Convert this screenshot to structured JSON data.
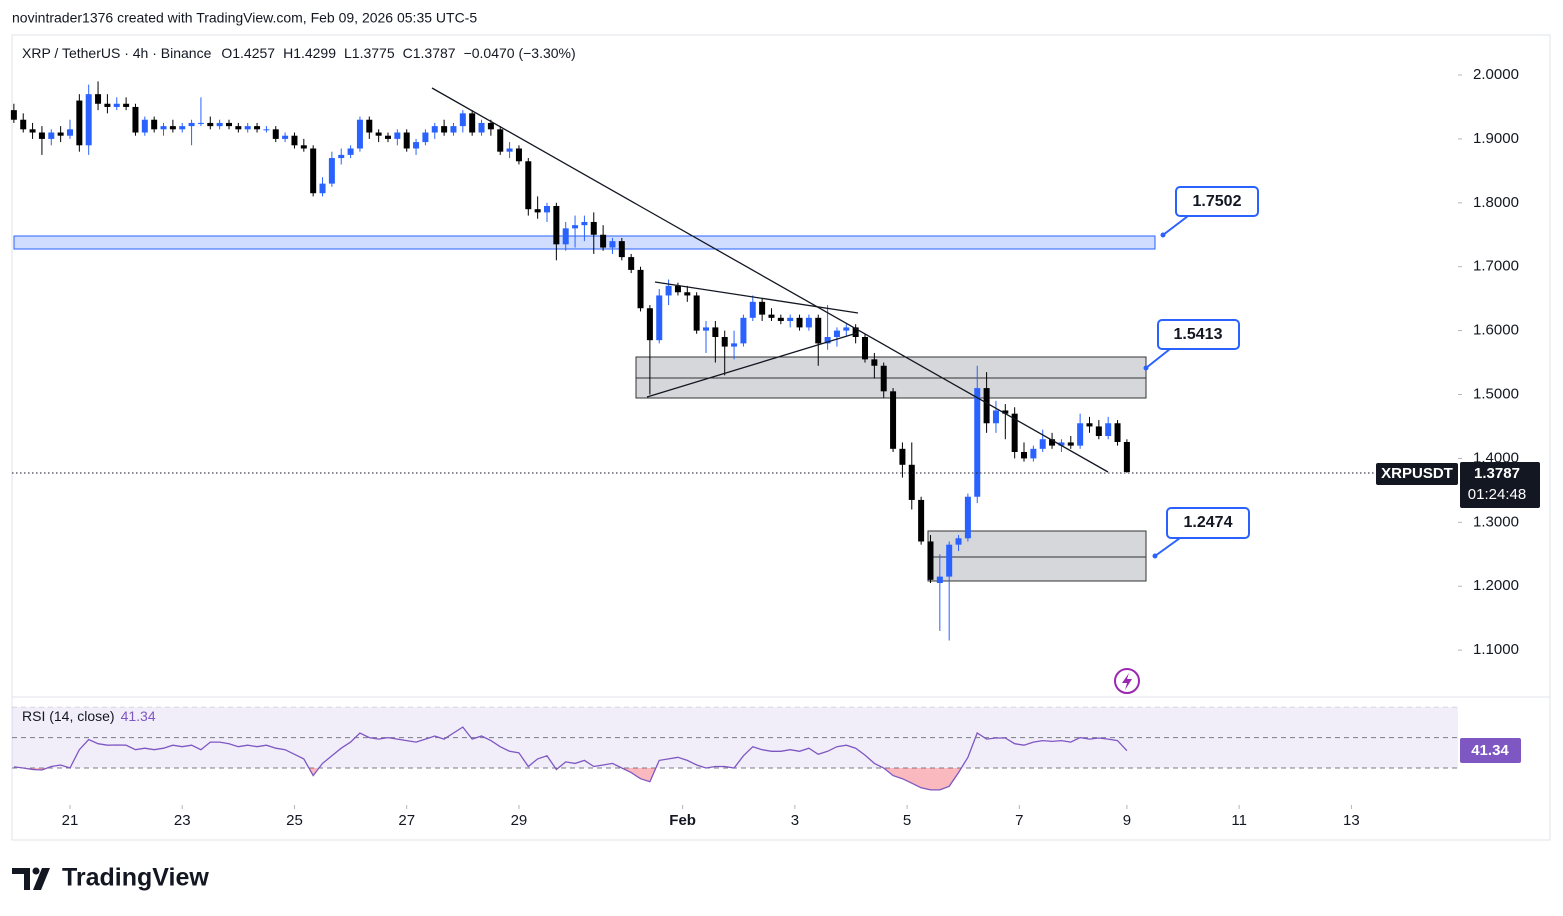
{
  "header": "novintrader1376 created with TradingView.com, Feb 09, 2026 05:35 UTC-5",
  "footer_logo": "TradingView",
  "chart_data": {
    "type": "candlestick",
    "legend": {
      "symbol": "XRP / TetherUS · 4h · Binance",
      "open": "O1.4257",
      "high": "H1.4299",
      "low": "L1.3775",
      "close": "C1.3787",
      "change": "−0.0470 (−3.30%)"
    },
    "colors": {
      "up": "#2962ff",
      "down": "#000000"
    },
    "grid": false,
    "open": [
      1.945,
      1.93,
      1.915,
      1.91,
      1.9,
      1.91,
      1.905,
      1.96,
      1.89,
      1.97,
      1.955,
      1.95,
      1.955,
      1.95,
      1.91,
      1.93,
      1.915,
      1.92,
      1.915,
      1.92,
      1.925,
      1.925,
      1.92,
      1.925,
      1.92,
      1.915,
      1.92,
      1.915,
      1.915,
      1.9,
      1.905,
      1.89,
      1.885,
      1.815,
      1.83,
      1.87,
      1.875,
      1.885,
      1.93,
      1.91,
      1.905,
      1.9,
      1.91,
      1.885,
      1.895,
      1.91,
      1.92,
      1.91,
      1.92,
      1.94,
      1.91,
      1.925,
      1.915,
      1.88,
      1.885,
      1.865,
      1.79,
      1.785,
      1.795,
      1.735,
      1.76,
      1.765,
      1.77,
      1.75,
      1.73,
      1.74,
      1.715,
      1.695,
      1.635,
      1.585,
      1.655,
      1.67,
      1.66,
      1.655,
      1.6,
      1.605,
      1.59,
      1.575,
      1.58,
      1.62,
      1.645,
      1.625,
      1.62,
      1.615,
      1.62,
      1.605,
      1.62,
      1.58,
      1.59,
      1.6,
      1.605,
      1.59,
      1.555,
      1.545,
      1.505,
      1.415,
      1.39,
      1.335,
      1.27,
      1.205,
      1.215,
      1.265,
      1.275,
      1.34,
      1.51,
      1.455,
      1.475,
      1.47,
      1.41,
      1.4,
      1.415,
      1.43,
      1.42,
      1.425,
      1.42,
      1.455,
      1.45,
      1.435,
      1.455,
      1.4257
    ],
    "high": [
      1.955,
      1.94,
      1.925,
      1.92,
      1.915,
      1.92,
      1.93,
      1.97,
      1.985,
      1.99,
      1.97,
      1.965,
      1.965,
      1.955,
      1.935,
      1.935,
      1.925,
      1.93,
      1.925,
      1.93,
      1.965,
      1.935,
      1.93,
      1.93,
      1.925,
      1.925,
      1.925,
      1.92,
      1.92,
      1.91,
      1.91,
      1.9,
      1.89,
      1.84,
      1.88,
      1.885,
      1.89,
      1.935,
      1.935,
      1.915,
      1.91,
      1.915,
      1.915,
      1.9,
      1.915,
      1.925,
      1.93,
      1.925,
      1.945,
      1.945,
      1.93,
      1.93,
      1.92,
      1.895,
      1.89,
      1.87,
      1.81,
      1.8,
      1.8,
      1.77,
      1.78,
      1.78,
      1.785,
      1.765,
      1.745,
      1.745,
      1.72,
      1.7,
      1.64,
      1.665,
      1.68,
      1.675,
      1.67,
      1.66,
      1.615,
      1.615,
      1.6,
      1.6,
      1.625,
      1.655,
      1.65,
      1.635,
      1.625,
      1.625,
      1.625,
      1.625,
      1.625,
      1.64,
      1.605,
      1.61,
      1.61,
      1.595,
      1.565,
      1.55,
      1.51,
      1.425,
      1.425,
      1.34,
      1.28,
      1.25,
      1.27,
      1.28,
      1.345,
      1.545,
      1.535,
      1.49,
      1.485,
      1.48,
      1.425,
      1.42,
      1.445,
      1.44,
      1.43,
      1.435,
      1.47,
      1.465,
      1.46,
      1.465,
      1.46,
      1.4299
    ],
    "low": [
      1.925,
      1.91,
      1.9,
      1.875,
      1.89,
      1.895,
      1.9,
      1.88,
      1.875,
      1.945,
      1.94,
      1.945,
      1.945,
      1.905,
      1.905,
      1.91,
      1.905,
      1.91,
      1.91,
      1.89,
      1.92,
      1.915,
      1.915,
      1.915,
      1.91,
      1.91,
      1.91,
      1.91,
      1.895,
      1.895,
      1.885,
      1.88,
      1.81,
      1.81,
      1.825,
      1.86,
      1.87,
      1.88,
      1.9,
      1.895,
      1.895,
      1.89,
      1.88,
      1.875,
      1.89,
      1.9,
      1.905,
      1.905,
      1.91,
      1.905,
      1.905,
      1.905,
      1.875,
      1.87,
      1.86,
      1.78,
      1.775,
      1.77,
      1.71,
      1.725,
      1.73,
      1.74,
      1.72,
      1.725,
      1.72,
      1.71,
      1.69,
      1.63,
      1.5,
      1.58,
      1.64,
      1.655,
      1.645,
      1.595,
      1.565,
      1.55,
      1.53,
      1.555,
      1.575,
      1.615,
      1.615,
      1.615,
      1.61,
      1.605,
      1.6,
      1.6,
      1.545,
      1.57,
      1.575,
      1.59,
      1.58,
      1.55,
      1.525,
      1.495,
      1.41,
      1.37,
      1.32,
      1.265,
      1.205,
      1.13,
      1.115,
      1.255,
      1.27,
      1.33,
      1.44,
      1.44,
      1.43,
      1.4,
      1.395,
      1.395,
      1.41,
      1.415,
      1.41,
      1.415,
      1.415,
      1.44,
      1.43,
      1.43,
      1.42,
      1.3775
    ],
    "close": [
      1.93,
      1.915,
      1.91,
      1.9,
      1.91,
      1.905,
      1.915,
      1.89,
      1.97,
      1.955,
      1.95,
      1.955,
      1.95,
      1.91,
      1.93,
      1.915,
      1.92,
      1.915,
      1.92,
      1.925,
      1.925,
      1.92,
      1.925,
      1.92,
      1.915,
      1.92,
      1.915,
      1.915,
      1.9,
      1.905,
      1.89,
      1.885,
      1.815,
      1.83,
      1.87,
      1.875,
      1.885,
      1.93,
      1.91,
      1.905,
      1.9,
      1.91,
      1.885,
      1.895,
      1.91,
      1.92,
      1.91,
      1.92,
      1.94,
      1.91,
      1.925,
      1.915,
      1.88,
      1.885,
      1.865,
      1.79,
      1.785,
      1.795,
      1.735,
      1.76,
      1.765,
      1.77,
      1.75,
      1.73,
      1.74,
      1.715,
      1.695,
      1.635,
      1.585,
      1.655,
      1.67,
      1.66,
      1.655,
      1.6,
      1.605,
      1.59,
      1.575,
      1.58,
      1.62,
      1.645,
      1.625,
      1.62,
      1.615,
      1.62,
      1.605,
      1.62,
      1.58,
      1.59,
      1.6,
      1.605,
      1.59,
      1.555,
      1.545,
      1.505,
      1.415,
      1.39,
      1.335,
      1.27,
      1.21,
      1.215,
      1.265,
      1.275,
      1.34,
      1.51,
      1.455,
      1.475,
      1.47,
      1.41,
      1.4,
      1.415,
      1.43,
      1.42,
      1.425,
      1.42,
      1.455,
      1.45,
      1.435,
      1.455,
      1.4257,
      1.3787
    ],
    "xlim": [
      -0.2,
      154.4
    ],
    "xticks": [
      {
        "value": 6,
        "label": "21"
      },
      {
        "value": 18,
        "label": "23"
      },
      {
        "value": 30,
        "label": "25"
      },
      {
        "value": 42,
        "label": "27"
      },
      {
        "value": 54,
        "label": "29"
      },
      {
        "value": 71.5,
        "label": "Feb"
      },
      {
        "value": 83.5,
        "label": "3"
      },
      {
        "value": 95.5,
        "label": "5"
      },
      {
        "value": 107.5,
        "label": "7"
      },
      {
        "value": 119,
        "label": "9"
      },
      {
        "value": 131,
        "label": "11"
      },
      {
        "value": 143,
        "label": "13"
      }
    ],
    "ylim": [
      1.0266,
      2.0626
    ],
    "yticks": [
      {
        "value": 2.0,
        "label": "2.0000"
      },
      {
        "value": 1.9,
        "label": "1.9000"
      },
      {
        "value": 1.8,
        "label": "1.8000"
      },
      {
        "value": 1.7,
        "label": "1.7000"
      },
      {
        "value": 1.6,
        "label": "1.6000"
      },
      {
        "value": 1.5,
        "label": "1.5000"
      },
      {
        "value": 1.4,
        "label": "1.4000"
      },
      {
        "value": 1.3,
        "label": "1.3000"
      },
      {
        "value": 1.2,
        "label": "1.2000"
      },
      {
        "value": 1.1,
        "label": "1.1000"
      }
    ],
    "last_price_symbol": "XRPUSDT",
    "countdown": "01:24:48",
    "level_labels": [
      1.7502,
      1.5413,
      1.2474
    ],
    "rsi": {
      "title": "RSI (14, close)",
      "color": "#7e57c2",
      "ylim": [
        7,
        76
      ],
      "bands": {
        "upper": 70,
        "middle": 50,
        "lower": 30
      },
      "values": [
        30.7,
        30,
        29,
        28.7,
        31,
        32,
        30,
        42,
        48.7,
        46,
        45,
        45.1,
        45,
        42,
        43,
        42,
        43,
        45,
        44,
        45,
        42,
        47,
        47,
        46,
        44,
        45,
        44,
        45,
        43,
        42,
        39,
        36,
        25,
        33,
        38,
        43,
        47,
        53,
        50,
        49,
        50,
        49,
        48,
        47,
        49,
        51,
        49,
        53,
        56.9,
        49,
        51,
        48,
        44,
        41,
        40,
        31,
        36,
        38,
        29,
        34,
        33,
        35,
        31,
        32,
        33,
        30,
        27,
        23,
        21,
        35,
        36,
        37,
        35,
        32,
        30,
        31,
        31,
        30,
        38,
        44,
        42,
        41,
        41,
        42,
        41,
        43,
        39,
        41,
        44,
        45,
        43,
        38.5,
        33,
        30,
        25,
        23,
        20,
        17,
        15.6,
        15.6,
        18,
        27,
        37,
        53,
        49,
        49.7,
        49.7,
        46,
        45,
        47,
        48,
        47.5,
        48,
        47,
        50,
        49,
        49.7,
        49,
        48,
        41.34
      ]
    }
  }
}
